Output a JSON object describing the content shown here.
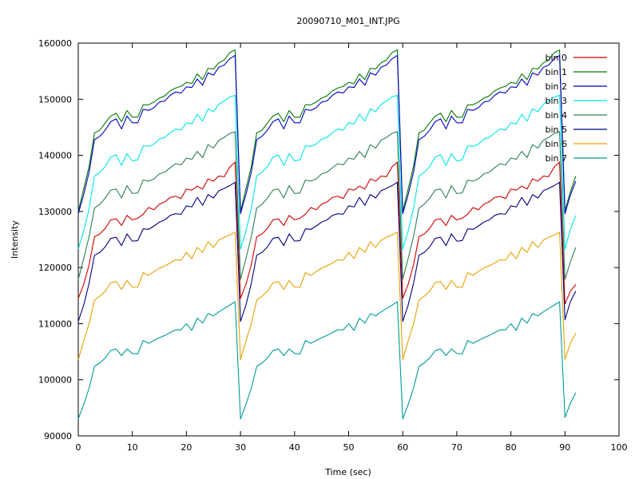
{
  "chart_data": {
    "type": "line",
    "title": "20090710_M01_INT.JPG",
    "xlabel": "Time (sec)",
    "ylabel": "Intensity",
    "xlim": [
      0,
      100
    ],
    "ylim": [
      90000,
      160000
    ],
    "x_ticks": [
      0,
      10,
      20,
      30,
      40,
      50,
      60,
      70,
      80,
      90,
      100
    ],
    "y_ticks": [
      90000,
      100000,
      110000,
      120000,
      130000,
      140000,
      150000,
      160000
    ],
    "grid": false,
    "legend_position": "top-right",
    "period_sec": 30,
    "cycle_time_points": [
      0,
      1,
      2,
      3,
      4,
      5,
      6,
      7,
      8,
      9,
      10,
      11,
      12,
      13,
      14,
      15,
      16,
      17,
      18,
      19,
      20,
      21,
      22,
      23,
      24,
      25,
      26,
      27,
      28,
      29
    ],
    "final_partial_time_points": [
      90,
      91,
      92
    ],
    "series": [
      {
        "name": "bin 0",
        "color": "#d40000",
        "cycle_values": [
          114500,
          117000,
          120500,
          125500,
          126000,
          127000,
          128500,
          128700,
          127500,
          129300,
          128500,
          128800,
          129500,
          130700,
          130300,
          131300,
          131700,
          132500,
          132700,
          132300,
          134000,
          133800,
          134500,
          134000,
          135800,
          135400,
          136300,
          136200,
          137900,
          138800
        ],
        "end_values": [
          113500,
          115800,
          117000
        ]
      },
      {
        "name": "bin 1",
        "color": "#007a00",
        "cycle_values": [
          130000,
          134000,
          138000,
          144000,
          144500,
          145800,
          147000,
          147500,
          146000,
          148000,
          146800,
          146800,
          149000,
          149000,
          149500,
          150200,
          150600,
          151500,
          152000,
          152300,
          153000,
          152800,
          154500,
          153500,
          155500,
          155400,
          156500,
          157000,
          158300,
          158800
        ],
        "end_values": [
          130200,
          133500,
          136300
        ]
      },
      {
        "name": "bin 2",
        "color": "#0000c8",
        "cycle_values": [
          129600,
          133000,
          137000,
          142800,
          143400,
          144500,
          146000,
          146500,
          144700,
          147000,
          145800,
          145800,
          148200,
          148000,
          148500,
          149500,
          149700,
          150700,
          151300,
          151100,
          152200,
          152100,
          153600,
          152500,
          154700,
          154300,
          155700,
          156100,
          157200,
          157800
        ],
        "end_values": [
          129600,
          132900,
          135400
        ]
      },
      {
        "name": "bin 3",
        "color": "#00e5e5",
        "cycle_values": [
          123300,
          126500,
          130500,
          136300,
          137000,
          138000,
          139700,
          140100,
          138200,
          140300,
          139000,
          139200,
          141700,
          141600,
          142000,
          142900,
          143200,
          144000,
          144700,
          144500,
          145800,
          145600,
          147300,
          146100,
          148300,
          147800,
          149100,
          149700,
          150400,
          150700
        ],
        "end_values": [
          123300,
          126800,
          129300
        ]
      },
      {
        "name": "bin 4",
        "color": "#2e7f50",
        "cycle_values": [
          117900,
          121600,
          125500,
          130600,
          131300,
          132400,
          133800,
          134000,
          132400,
          134600,
          133200,
          133300,
          135600,
          135400,
          135800,
          136700,
          137000,
          137800,
          138500,
          138300,
          139500,
          139300,
          140700,
          139600,
          141900,
          141300,
          142700,
          143200,
          143900,
          144200
        ],
        "end_values": [
          117900,
          121000,
          123600
        ]
      },
      {
        "name": "bin 5",
        "color": "#000080",
        "cycle_values": [
          110400,
          113300,
          117200,
          122200,
          122700,
          123700,
          125200,
          125400,
          123900,
          126000,
          124700,
          124800,
          126900,
          126800,
          127400,
          128100,
          128500,
          129300,
          129600,
          129500,
          131000,
          130800,
          132500,
          131100,
          133000,
          132400,
          133700,
          134100,
          134600,
          135200
        ],
        "end_values": [
          110700,
          113900,
          115800
        ]
      },
      {
        "name": "bin 6",
        "color": "#e5a100",
        "cycle_values": [
          103600,
          106900,
          110000,
          114200,
          114900,
          115800,
          117300,
          117500,
          116100,
          117700,
          116500,
          116500,
          119100,
          118600,
          119300,
          119900,
          120300,
          120800,
          121400,
          121300,
          122700,
          121600,
          123600,
          122700,
          124600,
          123600,
          124900,
          125400,
          125800,
          126300
        ],
        "end_values": [
          103600,
          106500,
          108300
        ]
      },
      {
        "name": "bin 7",
        "color": "#009a9a",
        "cycle_values": [
          93000,
          95600,
          98500,
          102400,
          103000,
          103900,
          105200,
          105500,
          104300,
          105500,
          104700,
          104600,
          107000,
          106500,
          107000,
          107500,
          107900,
          108400,
          108900,
          108900,
          110000,
          108800,
          111000,
          110100,
          111800,
          111400,
          112100,
          112700,
          113300,
          113900
        ],
        "end_values": [
          93300,
          95800,
          97700
        ]
      }
    ]
  }
}
